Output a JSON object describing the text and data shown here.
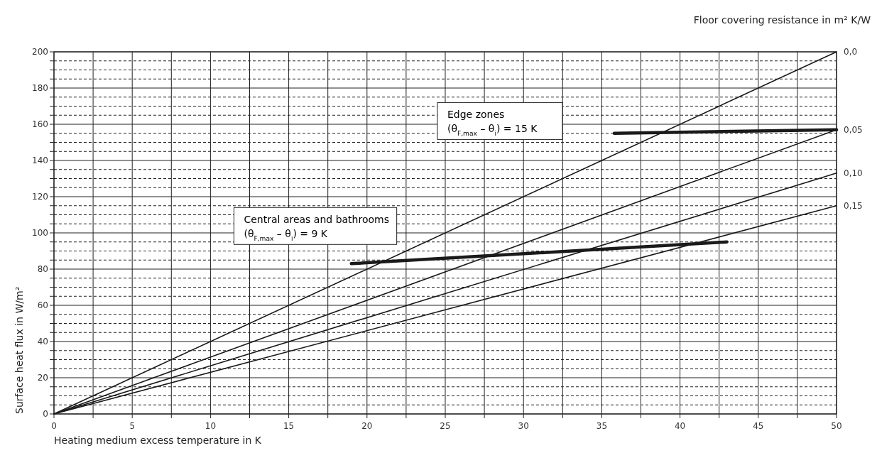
{
  "chart_data": {
    "type": "line",
    "xlabel": "Heating medium excess temperature in K",
    "ylabel": "Surface heat flux in W/m²",
    "legend_title": "Floor covering resistance in m² K/W",
    "xlim": [
      0,
      50
    ],
    "ylim": [
      0,
      200
    ],
    "xticks": [
      0,
      {
        "value": 2.5,
        "label": null
      },
      5,
      {
        "value": 7.5,
        "label": null
      },
      10,
      {
        "value": 12.5,
        "label": null
      },
      15,
      {
        "value": 17.5,
        "label": null
      },
      20,
      {
        "value": 22.5,
        "label": null
      },
      25,
      {
        "value": 27.5,
        "label": null
      },
      30,
      {
        "value": 32.5,
        "label": null
      },
      35,
      {
        "value": 37.5,
        "label": null
      },
      40,
      {
        "value": 42.5,
        "label": null
      },
      45,
      {
        "value": 47.5,
        "label": null
      },
      50
    ],
    "yticks": [
      0,
      {
        "value": 5,
        "label": null
      },
      {
        "value": 10,
        "label": null
      },
      {
        "value": 15,
        "label": null
      },
      20,
      {
        "value": 25,
        "label": null
      },
      {
        "value": 30,
        "label": null
      },
      {
        "value": 35,
        "label": null
      },
      40,
      {
        "value": 45,
        "label": null
      },
      {
        "value": 50,
        "label": null
      },
      {
        "value": 55,
        "label": null
      },
      60,
      {
        "value": 65,
        "label": null
      },
      {
        "value": 70,
        "label": null
      },
      {
        "value": 75,
        "label": null
      },
      80,
      {
        "value": 85,
        "label": null
      },
      {
        "value": 90,
        "label": null
      },
      {
        "value": 95,
        "label": null
      },
      100,
      {
        "value": 105,
        "label": null
      },
      {
        "value": 110,
        "label": null
      },
      {
        "value": 115,
        "label": null
      },
      120,
      {
        "value": 125,
        "label": null
      },
      {
        "value": 130,
        "label": null
      },
      {
        "value": 135,
        "label": null
      },
      140,
      {
        "value": 145,
        "label": null
      },
      {
        "value": 150,
        "label": null
      },
      {
        "value": 155,
        "label": null
      },
      160,
      {
        "value": 165,
        "label": null
      },
      {
        "value": 170,
        "label": null
      },
      {
        "value": 175,
        "label": null
      },
      180,
      {
        "value": 185,
        "label": null
      },
      {
        "value": 190,
        "label": null
      },
      {
        "value": 195,
        "label": null
      },
      200
    ],
    "grid": true,
    "legend": "right",
    "line_style": "solid",
    "series": [
      {
        "name": "0,0",
        "color": "#1a1a1a",
        "x": [
          0,
          50
        ],
        "values": [
          0,
          200
        ]
      },
      {
        "name": "0,05",
        "color": "#1a1a1a",
        "x": [
          0,
          50
        ],
        "values": [
          0,
          157
        ]
      },
      {
        "name": "0,10",
        "color": "#1a1a1a",
        "x": [
          0,
          50
        ],
        "values": [
          0,
          133
        ]
      },
      {
        "name": "0,15",
        "color": "#1a1a1a",
        "x": [
          0,
          50
        ],
        "values": [
          0,
          115
        ]
      },
      {
        "color": "#1a1a1a",
        "x": [
          35.8,
          50
        ],
        "values": [
          155,
          157
        ]
      },
      {
        "color": "#1a1a1a",
        "x": [
          19,
          43
        ],
        "values": [
          83,
          95
        ]
      }
    ],
    "annotations": [
      "Edge zones\n(θ$_{F,max}$ – θ$_{i}$) = 15 K",
      "Central areas and bathrooms\n(θ$_{F,max}$ – θ$_{i}$) = 9 K"
    ]
  }
}
